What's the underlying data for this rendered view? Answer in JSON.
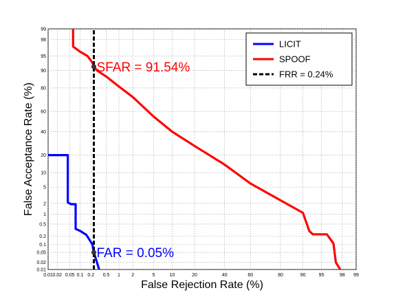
{
  "chart_data": {
    "type": "line",
    "xlabel": "False Rejection Rate (%)",
    "ylabel": "False Acceptance Rate (%)",
    "scale": "normal-deviate (DET)",
    "xlim": [
      0.01,
      99
    ],
    "ylim": [
      0.01,
      99
    ],
    "x_ticks": [
      "0.01",
      "0.02",
      "0.05",
      "0.1",
      "0.2",
      "0.5",
      "1",
      "2",
      "5",
      "10",
      "20",
      "40",
      "60",
      "80",
      "90",
      "95",
      "98",
      "99"
    ],
    "y_ticks": [
      "0.01",
      "0.02",
      "0.05",
      "0.1",
      "0.2",
      "0.5",
      "1",
      "2",
      "5",
      "10",
      "20",
      "40",
      "60",
      "80",
      "90",
      "95",
      "98",
      "99"
    ],
    "grid": true,
    "legend_position": "top-right",
    "legend": [
      "LICIT",
      "SPOOF",
      "FRR = 0.24%"
    ],
    "series": [
      {
        "name": "LICIT",
        "color": "#0000ff",
        "x": [
          0.01,
          0.043,
          0.043,
          0.055,
          0.074,
          0.074,
          0.1,
          0.15,
          0.22,
          0.24,
          0.29,
          0.33
        ],
        "y": [
          20,
          20,
          2.1,
          1.9,
          1.9,
          0.35,
          0.3,
          0.22,
          0.1,
          0.05,
          0.02,
          0.01
        ]
      },
      {
        "name": "SPOOF",
        "color": "#ff0000",
        "x": [
          0.062,
          0.062,
          0.1,
          0.16,
          0.22,
          0.24,
          0.29,
          0.5,
          1,
          2,
          5,
          10,
          20,
          40,
          60,
          80,
          90,
          92,
          93,
          96,
          97,
          97.3,
          97.8
        ],
        "y": [
          99,
          97,
          96,
          95,
          93,
          91.54,
          90,
          87,
          81,
          73,
          55,
          40,
          27,
          14,
          6,
          2.4,
          1.1,
          0.3,
          0.23,
          0.23,
          0.11,
          0.02,
          0.01
        ]
      },
      {
        "name": "FRR = 0.24%",
        "color": "#000000",
        "style": "dashed",
        "x": [
          0.24,
          0.24
        ],
        "y": [
          0.01,
          99
        ]
      }
    ],
    "annotations": [
      {
        "text": "SFAR = 91.54%",
        "x": 0.24,
        "y": 91.54,
        "color": "#ff0000"
      },
      {
        "text": "FAR = 0.05%",
        "x": 0.24,
        "y": 0.05,
        "color": "#0000ff"
      }
    ]
  }
}
